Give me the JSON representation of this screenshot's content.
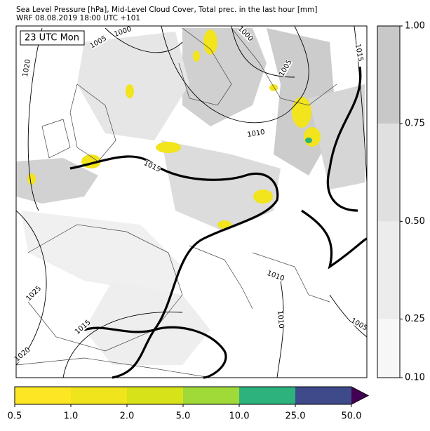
{
  "title_lines": [
    "Sea Level Pressure [hPa], Mid-Level Cloud Cover, Total prec. in the last hour [mm]",
    "WRF 08.08.2019 18:00 UTC +101"
  ],
  "time_label": "23 UTC Mon",
  "contour_labels": [
    1005,
    1000,
    1000,
    1005,
    1015,
    1020,
    1010,
    1015,
    1010,
    1025,
    1015,
    1020,
    1010,
    1005
  ],
  "cloud_colorbar": {
    "ticks": [
      {
        "value": 0.1,
        "label": "0.10"
      },
      {
        "value": 0.25,
        "label": "0.25"
      },
      {
        "value": 0.5,
        "label": "0.50"
      },
      {
        "value": 0.75,
        "label": "0.75"
      },
      {
        "value": 1.0,
        "label": "1.00"
      }
    ],
    "colors": [
      "#f7f7f7",
      "#ececec",
      "#e0e0e0",
      "#c8c8c8"
    ]
  },
  "precip_colorbar": {
    "ticks": [
      0.5,
      {
        "value": 1.0,
        "label": "1.0"
      },
      {
        "value": 2.0,
        "label": "2.0"
      },
      {
        "value": 5.0,
        "label": "5.0"
      },
      {
        "value": 10.0,
        "label": "10.0"
      },
      {
        "value": 25.0,
        "label": "25.0"
      },
      {
        "value": 50.0,
        "label": "50.0"
      }
    ],
    "colors": [
      "#fde725",
      "#f0e51c",
      "#d8e219",
      "#a0da39",
      "#2db27d",
      "#3e4a89"
    ],
    "extend_color": "#440154"
  }
}
